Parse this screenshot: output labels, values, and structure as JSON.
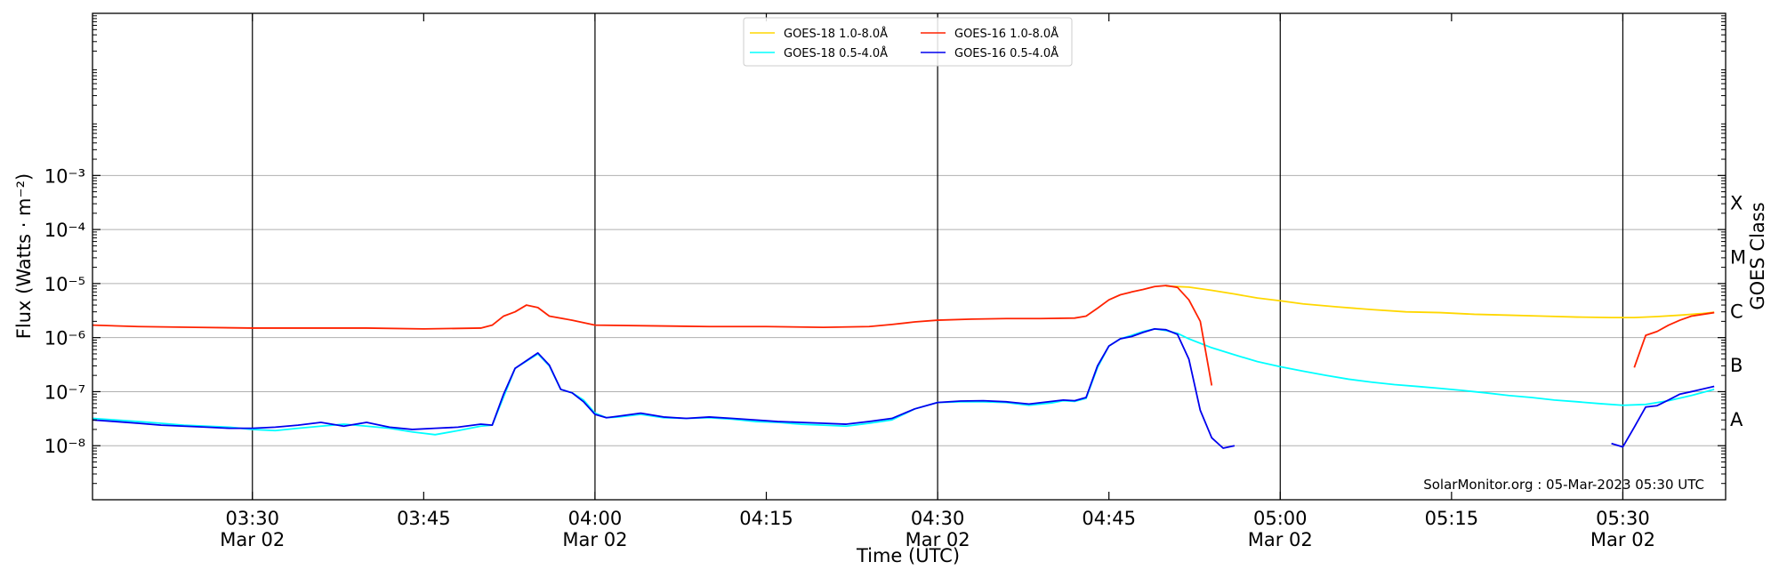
{
  "chart_data": {
    "type": "line",
    "xlabel": "Time (UTC)",
    "ylabel": "Flux (Watts · m⁻²)",
    "ylabel_right": "GOES Class",
    "credit": "SolarMonitor.org : 05-Mar-2023 05:30 UTC",
    "x_range": [
      "03:16",
      "05:39"
    ],
    "y_log_exponent_range": [
      -9,
      0
    ],
    "x_ticks": [
      {
        "time": "03:30",
        "label1": "03:30",
        "label2": "Mar 02",
        "vline": true
      },
      {
        "time": "03:45",
        "label1": "03:45",
        "label2": "",
        "vline": false
      },
      {
        "time": "04:00",
        "label1": "04:00",
        "label2": "Mar 02",
        "vline": true
      },
      {
        "time": "04:15",
        "label1": "04:15",
        "label2": "",
        "vline": false
      },
      {
        "time": "04:30",
        "label1": "04:30",
        "label2": "Mar 02",
        "vline": true
      },
      {
        "time": "04:45",
        "label1": "04:45",
        "label2": "",
        "vline": false
      },
      {
        "time": "05:00",
        "label1": "05:00",
        "label2": "Mar 02",
        "vline": true
      },
      {
        "time": "05:15",
        "label1": "05:15",
        "label2": "",
        "vline": false
      },
      {
        "time": "05:30",
        "label1": "05:30",
        "label2": "Mar 02",
        "vline": true
      }
    ],
    "y_ticks": [
      {
        "exp": -8,
        "label": "10⁻⁸"
      },
      {
        "exp": -7,
        "label": "10⁻⁷"
      },
      {
        "exp": -6,
        "label": "10⁻⁶"
      },
      {
        "exp": -5,
        "label": "10⁻⁵"
      },
      {
        "exp": -4,
        "label": "10⁻⁴"
      },
      {
        "exp": -3,
        "label": "10⁻³"
      }
    ],
    "grid_y": true,
    "goes_classes": [
      {
        "label": "X",
        "exp": -3.5
      },
      {
        "label": "M",
        "exp": -4.5
      },
      {
        "label": "C",
        "exp": -5.5
      },
      {
        "label": "B",
        "exp": -6.5
      },
      {
        "label": "A",
        "exp": -7.5
      }
    ],
    "legend_position": "top-center",
    "series": [
      {
        "name": "GOES-18 1.0-8.0Å",
        "color": "#ffd700",
        "data": [
          [
            "04:50",
            9e-06
          ],
          [
            "04:52",
            8.6e-06
          ],
          [
            "04:54",
            7.5e-06
          ],
          [
            "04:56",
            6.4e-06
          ],
          [
            "04:58",
            5.4e-06
          ],
          [
            "05:00",
            4.8e-06
          ],
          [
            "05:02",
            4.2e-06
          ],
          [
            "05:05",
            3.7e-06
          ],
          [
            "05:08",
            3.3e-06
          ],
          [
            "05:11",
            3e-06
          ],
          [
            "05:14",
            2.9e-06
          ],
          [
            "05:17",
            2.7e-06
          ],
          [
            "05:20",
            2.6e-06
          ],
          [
            "05:23",
            2.5e-06
          ],
          [
            "05:26",
            2.4e-06
          ],
          [
            "05:29",
            2.35e-06
          ],
          [
            "05:31",
            2.35e-06
          ],
          [
            "05:33",
            2.45e-06
          ],
          [
            "05:35",
            2.6e-06
          ],
          [
            "05:37",
            2.8e-06
          ],
          [
            "05:38",
            2.95e-06
          ]
        ]
      },
      {
        "name": "GOES-18 0.5-4.0Å",
        "color": "#00ffff",
        "data": [
          [
            "03:16",
            3.2e-08
          ],
          [
            "03:18",
            3e-08
          ],
          [
            "03:20",
            2.8e-08
          ],
          [
            "03:22",
            2.6e-08
          ],
          [
            "03:24",
            2.4e-08
          ],
          [
            "03:26",
            2.3e-08
          ],
          [
            "03:28",
            2.2e-08
          ],
          [
            "03:30",
            2e-08
          ],
          [
            "03:32",
            1.9e-08
          ],
          [
            "03:34",
            2.1e-08
          ],
          [
            "03:36",
            2.3e-08
          ],
          [
            "03:38",
            2.5e-08
          ],
          [
            "03:40",
            2.3e-08
          ],
          [
            "03:42",
            2.1e-08
          ],
          [
            "03:44",
            1.8e-08
          ],
          [
            "03:46",
            1.6e-08
          ],
          [
            "03:48",
            1.9e-08
          ],
          [
            "03:50",
            2.3e-08
          ],
          [
            "03:51",
            2.4e-08
          ],
          [
            "03:52",
            8e-08
          ],
          [
            "03:53",
            2.7e-07
          ],
          [
            "03:55",
            5e-07
          ],
          [
            "03:56",
            3e-07
          ],
          [
            "03:57",
            1.1e-07
          ],
          [
            "03:58",
            9.5e-08
          ],
          [
            "03:59",
            7e-08
          ],
          [
            "04:00",
            4e-08
          ],
          [
            "04:01",
            3.3e-08
          ],
          [
            "04:02",
            3.4e-08
          ],
          [
            "04:04",
            3.8e-08
          ],
          [
            "04:06",
            3.3e-08
          ],
          [
            "04:08",
            3.2e-08
          ],
          [
            "04:10",
            3.3e-08
          ],
          [
            "04:12",
            3.1e-08
          ],
          [
            "04:14",
            2.8e-08
          ],
          [
            "04:16",
            2.7e-08
          ],
          [
            "04:18",
            2.5e-08
          ],
          [
            "04:20",
            2.4e-08
          ],
          [
            "04:22",
            2.3e-08
          ],
          [
            "04:24",
            2.6e-08
          ],
          [
            "04:26",
            3e-08
          ],
          [
            "04:28",
            4.8e-08
          ],
          [
            "04:30",
            6.3e-08
          ],
          [
            "04:32",
            6.5e-08
          ],
          [
            "04:34",
            6.5e-08
          ],
          [
            "04:36",
            6.3e-08
          ],
          [
            "04:38",
            5.6e-08
          ],
          [
            "04:40",
            6.2e-08
          ],
          [
            "04:41",
            6.8e-08
          ],
          [
            "04:42",
            6.6e-08
          ],
          [
            "04:43",
            7.5e-08
          ],
          [
            "04:44",
            2.8e-07
          ],
          [
            "04:45",
            7e-07
          ],
          [
            "04:46",
            9.5e-07
          ],
          [
            "04:47",
            1.1e-06
          ],
          [
            "04:48",
            1.3e-06
          ],
          [
            "04:49",
            1.45e-06
          ],
          [
            "04:50",
            1.35e-06
          ],
          [
            "04:51",
            1.2e-06
          ],
          [
            "04:52",
            9.5e-07
          ],
          [
            "04:54",
            6.5e-07
          ],
          [
            "04:56",
            4.8e-07
          ],
          [
            "04:58",
            3.6e-07
          ],
          [
            "05:00",
            2.9e-07
          ],
          [
            "05:02",
            2.4e-07
          ],
          [
            "05:04",
            2e-07
          ],
          [
            "05:06",
            1.7e-07
          ],
          [
            "05:08",
            1.5e-07
          ],
          [
            "05:10",
            1.35e-07
          ],
          [
            "05:12",
            1.25e-07
          ],
          [
            "05:14",
            1.15e-07
          ],
          [
            "05:16",
            1.05e-07
          ],
          [
            "05:18",
            9.5e-08
          ],
          [
            "05:20",
            8.5e-08
          ],
          [
            "05:22",
            7.8e-08
          ],
          [
            "05:24",
            7e-08
          ],
          [
            "05:26",
            6.5e-08
          ],
          [
            "05:28",
            6e-08
          ],
          [
            "05:30",
            5.6e-08
          ],
          [
            "05:32",
            5.8e-08
          ],
          [
            "05:34",
            6.8e-08
          ],
          [
            "05:36",
            8.5e-08
          ],
          [
            "05:38",
            1.1e-07
          ]
        ]
      },
      {
        "name": "GOES-16 1.0-8.0Å",
        "color": "#ff2200",
        "segments": [
          [
            [
              "03:16",
              1.7e-06
            ],
            [
              "03:20",
              1.6e-06
            ],
            [
              "03:25",
              1.55e-06
            ],
            [
              "03:30",
              1.5e-06
            ],
            [
              "03:35",
              1.5e-06
            ],
            [
              "03:40",
              1.5e-06
            ],
            [
              "03:45",
              1.45e-06
            ],
            [
              "03:50",
              1.5e-06
            ],
            [
              "03:51",
              1.7e-06
            ],
            [
              "03:52",
              2.5e-06
            ],
            [
              "03:53",
              3e-06
            ],
            [
              "03:54",
              4e-06
            ],
            [
              "03:55",
              3.6e-06
            ],
            [
              "03:56",
              2.5e-06
            ],
            [
              "03:58",
              2.1e-06
            ],
            [
              "04:00",
              1.7e-06
            ],
            [
              "04:05",
              1.65e-06
            ],
            [
              "04:10",
              1.6e-06
            ],
            [
              "04:15",
              1.6e-06
            ],
            [
              "04:20",
              1.55e-06
            ],
            [
              "04:24",
              1.6e-06
            ],
            [
              "04:26",
              1.75e-06
            ],
            [
              "04:28",
              1.95e-06
            ],
            [
              "04:30",
              2.1e-06
            ],
            [
              "04:33",
              2.2e-06
            ],
            [
              "04:36",
              2.25e-06
            ],
            [
              "04:39",
              2.25e-06
            ],
            [
              "04:42",
              2.3e-06
            ],
            [
              "04:43",
              2.5e-06
            ],
            [
              "04:44",
              3.5e-06
            ],
            [
              "04:45",
              5e-06
            ],
            [
              "04:46",
              6.2e-06
            ],
            [
              "04:47",
              7e-06
            ],
            [
              "04:48",
              7.8e-06
            ],
            [
              "04:49",
              8.8e-06
            ],
            [
              "04:50",
              9.2e-06
            ],
            [
              "04:51",
              8.5e-06
            ],
            [
              "04:52",
              5e-06
            ],
            [
              "04:53",
              2e-06
            ],
            [
              "04:54",
              1.3e-07
            ]
          ],
          [
            [
              "05:31",
              2.8e-07
            ],
            [
              "05:32",
              1.1e-06
            ],
            [
              "05:33",
              1.3e-06
            ],
            [
              "05:34",
              1.7e-06
            ],
            [
              "05:35",
              2.1e-06
            ],
            [
              "05:36",
              2.5e-06
            ],
            [
              "05:38",
              2.9e-06
            ]
          ]
        ]
      },
      {
        "name": "GOES-16 0.5-4.0Å",
        "color": "#0000ee",
        "segments": [
          [
            [
              "03:16",
              3e-08
            ],
            [
              "03:18",
              2.8e-08
            ],
            [
              "03:20",
              2.6e-08
            ],
            [
              "03:22",
              2.4e-08
            ],
            [
              "03:24",
              2.3e-08
            ],
            [
              "03:26",
              2.2e-08
            ],
            [
              "03:28",
              2.1e-08
            ],
            [
              "03:30",
              2.1e-08
            ],
            [
              "03:32",
              2.2e-08
            ],
            [
              "03:34",
              2.4e-08
            ],
            [
              "03:36",
              2.7e-08
            ],
            [
              "03:38",
              2.3e-08
            ],
            [
              "03:40",
              2.7e-08
            ],
            [
              "03:42",
              2.2e-08
            ],
            [
              "03:44",
              2e-08
            ],
            [
              "03:46",
              2.1e-08
            ],
            [
              "03:48",
              2.2e-08
            ],
            [
              "03:50",
              2.5e-08
            ],
            [
              "03:51",
              2.4e-08
            ],
            [
              "03:52",
              9e-08
            ],
            [
              "03:53",
              2.7e-07
            ],
            [
              "03:55",
              5.2e-07
            ],
            [
              "03:56",
              3.1e-07
            ],
            [
              "03:57",
              1.1e-07
            ],
            [
              "03:58",
              9.5e-08
            ],
            [
              "03:59",
              6.5e-08
            ],
            [
              "04:00",
              3.8e-08
            ],
            [
              "04:01",
              3.3e-08
            ],
            [
              "04:02",
              3.5e-08
            ],
            [
              "04:04",
              4e-08
            ],
            [
              "04:06",
              3.4e-08
            ],
            [
              "04:08",
              3.2e-08
            ],
            [
              "04:10",
              3.4e-08
            ],
            [
              "04:12",
              3.2e-08
            ],
            [
              "04:14",
              3e-08
            ],
            [
              "04:16",
              2.8e-08
            ],
            [
              "04:18",
              2.7e-08
            ],
            [
              "04:20",
              2.6e-08
            ],
            [
              "04:22",
              2.5e-08
            ],
            [
              "04:24",
              2.8e-08
            ],
            [
              "04:26",
              3.2e-08
            ],
            [
              "04:28",
              4.8e-08
            ],
            [
              "04:30",
              6.3e-08
            ],
            [
              "04:32",
              6.7e-08
            ],
            [
              "04:34",
              6.8e-08
            ],
            [
              "04:36",
              6.5e-08
            ],
            [
              "04:38",
              5.9e-08
            ],
            [
              "04:40",
              6.6e-08
            ],
            [
              "04:41",
              7e-08
            ],
            [
              "04:42",
              6.8e-08
            ],
            [
              "04:43",
              7.8e-08
            ],
            [
              "04:44",
              3e-07
            ],
            [
              "04:45",
              7e-07
            ],
            [
              "04:46",
              9.5e-07
            ],
            [
              "04:47",
              1.05e-06
            ],
            [
              "04:48",
              1.25e-06
            ],
            [
              "04:49",
              1.45e-06
            ],
            [
              "04:50",
              1.4e-06
            ],
            [
              "04:51",
              1.15e-06
            ],
            [
              "04:52",
              4e-07
            ],
            [
              "04:53",
              4.5e-08
            ],
            [
              "04:54",
              1.4e-08
            ],
            [
              "04:55",
              9e-09
            ],
            [
              "04:56",
              1e-08
            ]
          ],
          [
            [
              "05:29",
              1.1e-08
            ],
            [
              "05:30",
              9.5e-09
            ],
            [
              "05:31",
              2.2e-08
            ],
            [
              "05:32",
              5.2e-08
            ],
            [
              "05:33",
              5.5e-08
            ],
            [
              "05:34",
              7e-08
            ],
            [
              "05:35",
              9e-08
            ],
            [
              "05:36",
              1e-07
            ],
            [
              "05:38",
              1.25e-07
            ]
          ]
        ]
      }
    ]
  }
}
